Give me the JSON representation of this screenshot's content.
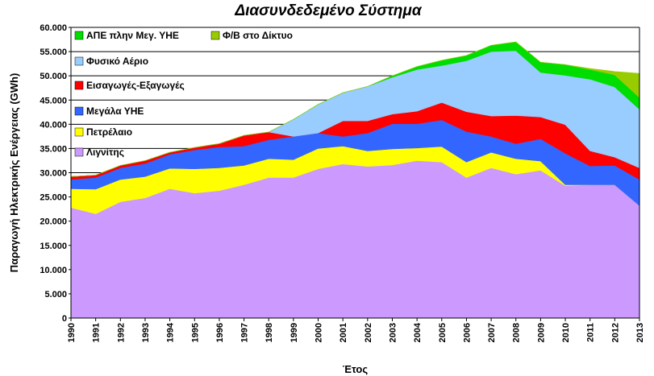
{
  "chart_data": {
    "type": "area",
    "stacked": true,
    "title": "Διασυνδεδεμένο Σύστημα",
    "xlabel": "Έτος",
    "ylabel": "Παραγωγή Ηλεκτρικής Ενέργειας (GWh)",
    "ylim": [
      0,
      60000
    ],
    "ytick_step": 5000,
    "ytick_labels": [
      "0",
      "5.000",
      "10.000",
      "15.000",
      "20.000",
      "25.000",
      "30.000",
      "35.000",
      "40.000",
      "45.000",
      "50.000",
      "55.000",
      "60.000"
    ],
    "grid": true,
    "legend_position": "top-left (inside plot)",
    "x": [
      1990,
      1991,
      1992,
      1993,
      1994,
      1995,
      1996,
      1997,
      1998,
      1999,
      2000,
      2001,
      2002,
      2003,
      2004,
      2005,
      2006,
      2007,
      2008,
      2009,
      2010,
      2011,
      2012,
      2013
    ],
    "series": [
      {
        "name": "Λιγνίτης",
        "color": "#cc99ff",
        "values": [
          22800,
          21500,
          24000,
          24800,
          26700,
          25800,
          26300,
          27500,
          29000,
          29000,
          30800,
          31800,
          31300,
          31600,
          32500,
          32200,
          29000,
          31000,
          29700,
          30500,
          27300,
          27500,
          27500,
          23200
        ]
      },
      {
        "name": "Πετρέλαιο",
        "color": "#ffff00",
        "values": [
          3900,
          5100,
          4600,
          4400,
          4200,
          5000,
          4700,
          4000,
          3900,
          3700,
          4200,
          3700,
          3200,
          3300,
          2600,
          3200,
          3200,
          3200,
          3200,
          1900,
          200,
          0,
          0,
          0
        ]
      },
      {
        "name": "Μεγάλα ΥΗΕ",
        "color": "#3366ff",
        "values": [
          1900,
          2400,
          2400,
          2700,
          2900,
          3900,
          4300,
          4000,
          3900,
          4800,
          3200,
          2000,
          3700,
          5200,
          5000,
          5500,
          6300,
          3300,
          3100,
          4600,
          6500,
          3900,
          4000,
          5400
        ]
      },
      {
        "name": "Εισαγωγές-Εξαγωγές",
        "color": "#ff0000",
        "values": [
          600,
          500,
          500,
          600,
          400,
          500,
          700,
          2200,
          1600,
          0,
          0,
          3200,
          2500,
          2000,
          2600,
          3600,
          4100,
          4200,
          5800,
          4500,
          5900,
          3100,
          1700,
          2400
        ]
      },
      {
        "name": "Φυσικό Αέριο",
        "color": "#99ccff",
        "values": [
          0,
          0,
          0,
          0,
          0,
          0,
          0,
          0,
          0,
          3500,
          5900,
          5800,
          7100,
          7600,
          8600,
          7600,
          10500,
          13300,
          13400,
          9200,
          10200,
          14800,
          14500,
          12100
        ]
      },
      {
        "name": "ΑΠΕ πλην Μεγ. ΥΗΕ",
        "color": "#00dd00",
        "values": [
          0,
          0,
          0,
          0,
          0,
          0,
          0,
          0,
          0,
          0,
          0,
          0,
          0,
          300,
          600,
          1100,
          1100,
          1300,
          1800,
          2100,
          2200,
          2000,
          2500,
          2400
        ]
      },
      {
        "name": "Φ/Β στο Δίκτυο",
        "color": "#99cc00",
        "values": [
          0,
          0,
          0,
          0,
          0,
          0,
          0,
          0,
          0,
          0,
          0,
          0,
          0,
          0,
          0,
          0,
          0,
          0,
          0,
          0,
          0,
          200,
          700,
          5000
        ]
      }
    ]
  }
}
